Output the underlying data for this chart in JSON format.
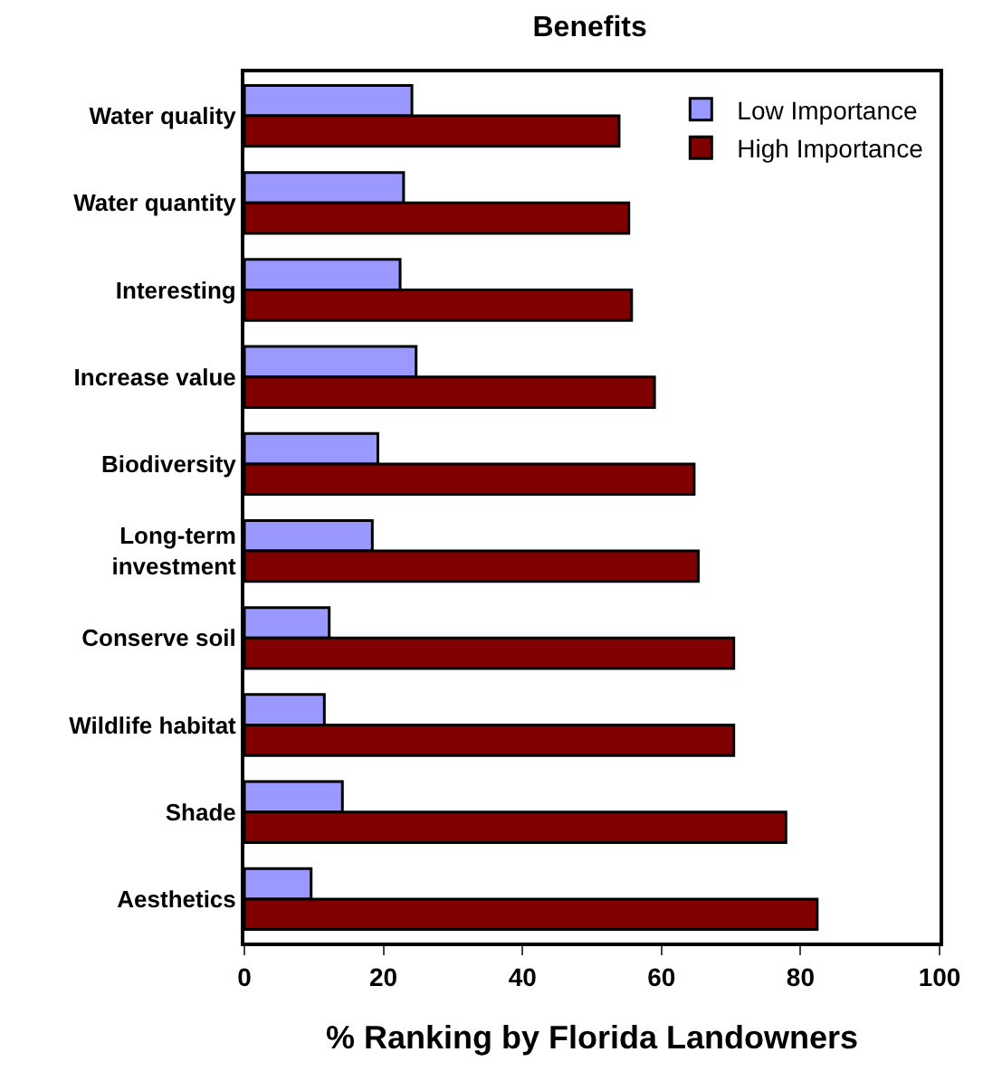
{
  "chart_data": {
    "type": "bar",
    "orientation": "horizontal",
    "title": "Benefits",
    "xlabel": "% Ranking by Florida Landowners",
    "categories": [
      "Water quality",
      "Water quantity",
      "Interesting",
      "Increase value",
      "Biodiversity",
      "Long-term investment",
      "Conserve soil",
      "Wildlife habitat",
      "Shade",
      "Aesthetics"
    ],
    "series": [
      {
        "name": "Low Importance",
        "color": "#9999ff",
        "values": [
          24.1,
          22.9,
          22.4,
          24.7,
          19.2,
          18.4,
          12.2,
          11.5,
          14.1,
          9.6
        ]
      },
      {
        "name": "High Importance",
        "color": "#800000",
        "values": [
          53.9,
          55.3,
          55.7,
          59.0,
          64.7,
          65.3,
          70.4,
          70.4,
          77.9,
          82.4
        ]
      }
    ],
    "xlim": [
      0,
      100
    ],
    "xticks": [
      0,
      20,
      40,
      60,
      80,
      100
    ],
    "grid": false,
    "legend": "top right"
  }
}
